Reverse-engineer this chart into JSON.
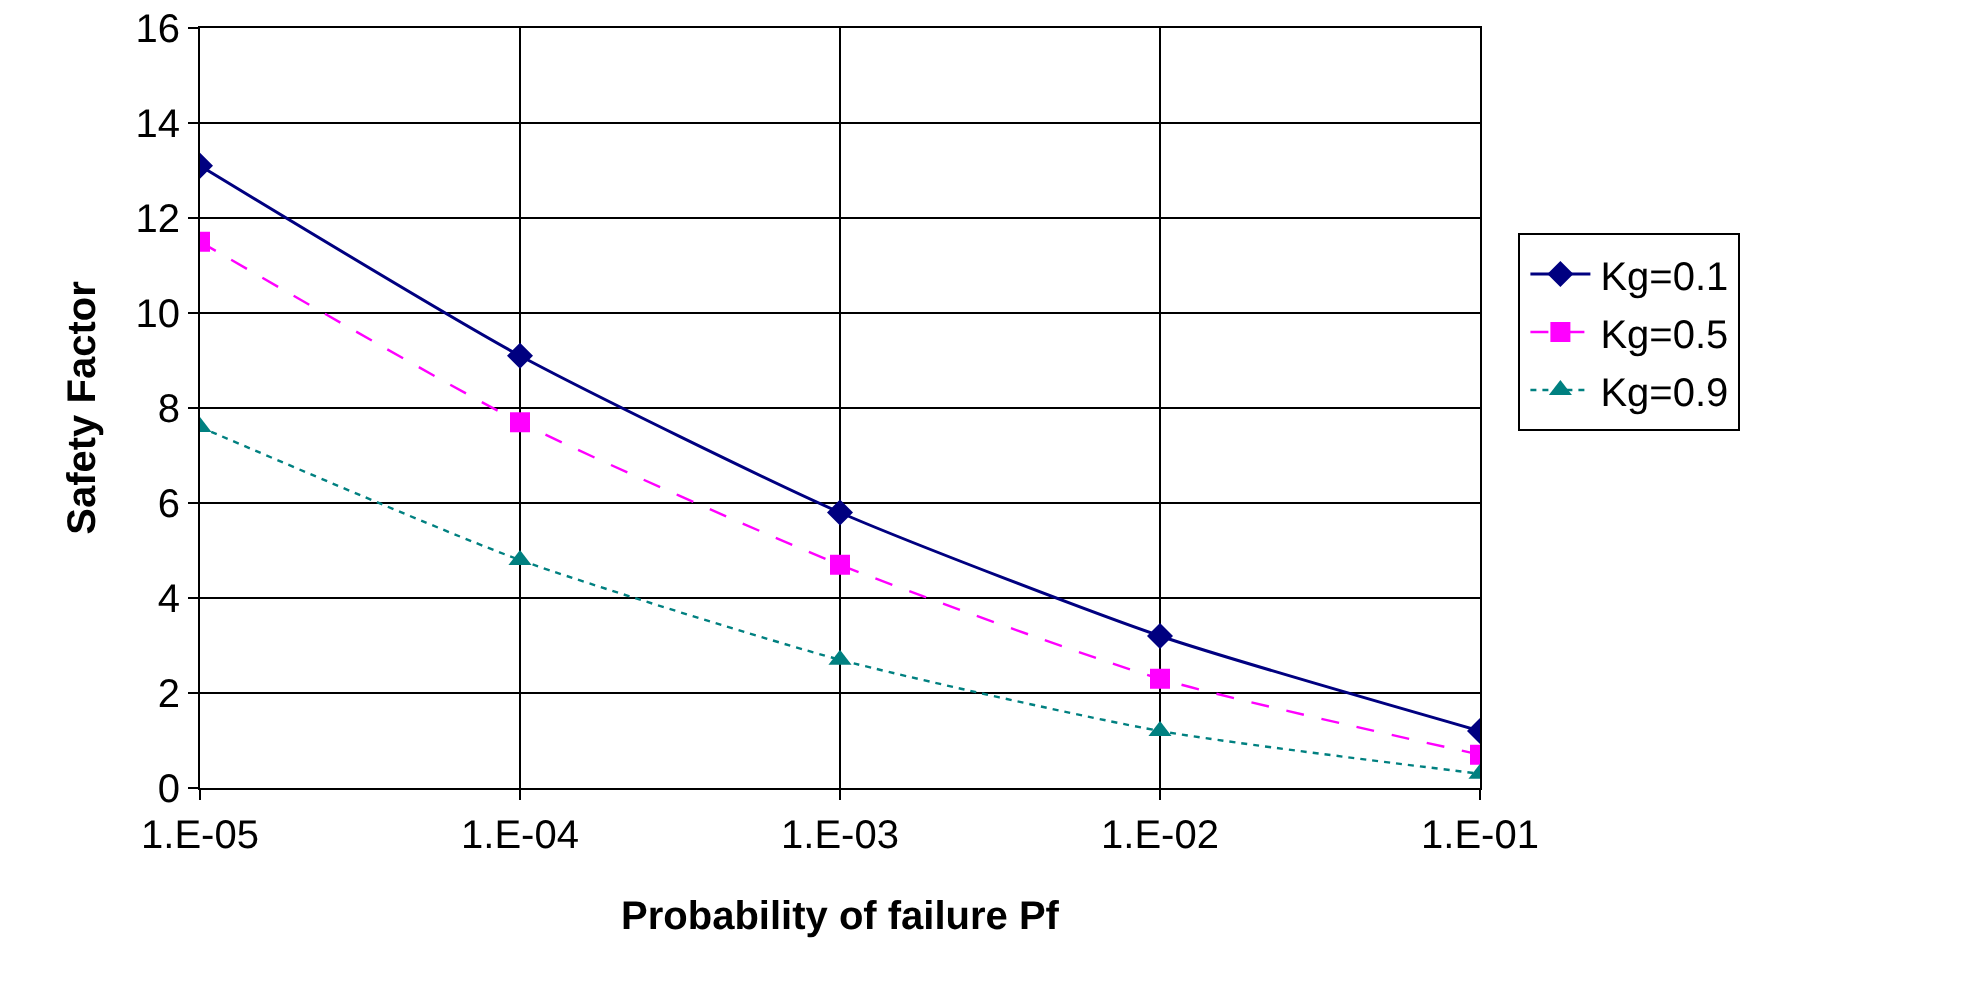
{
  "chart_data": {
    "type": "line",
    "xlabel": "Probability of failure Pf",
    "ylabel": "Safety Factor",
    "categories": [
      "1.E-05",
      "1.E-04",
      "1.E-03",
      "1.E-02",
      "1.E-01"
    ],
    "ylim": [
      0,
      16
    ],
    "yticks": [
      0,
      2,
      4,
      6,
      8,
      10,
      12,
      14,
      16
    ],
    "grid": true,
    "legend": "right",
    "series": [
      {
        "name": "Kg=0.1",
        "color": "#000080",
        "values": [
          13.1,
          9.1,
          5.8,
          3.2,
          1.2
        ],
        "marker": "diamond",
        "line_style": "solid"
      },
      {
        "name": "Kg=0.5",
        "color": "#ff00ff",
        "values": [
          11.5,
          7.7,
          4.7,
          2.3,
          0.7
        ],
        "marker": "square",
        "line_style": "dashed"
      },
      {
        "name": "Kg=0.9",
        "color": "#008080",
        "values": [
          7.6,
          4.8,
          2.7,
          1.2,
          0.3
        ],
        "marker": "triangle",
        "line_style": "dotted"
      }
    ]
  }
}
